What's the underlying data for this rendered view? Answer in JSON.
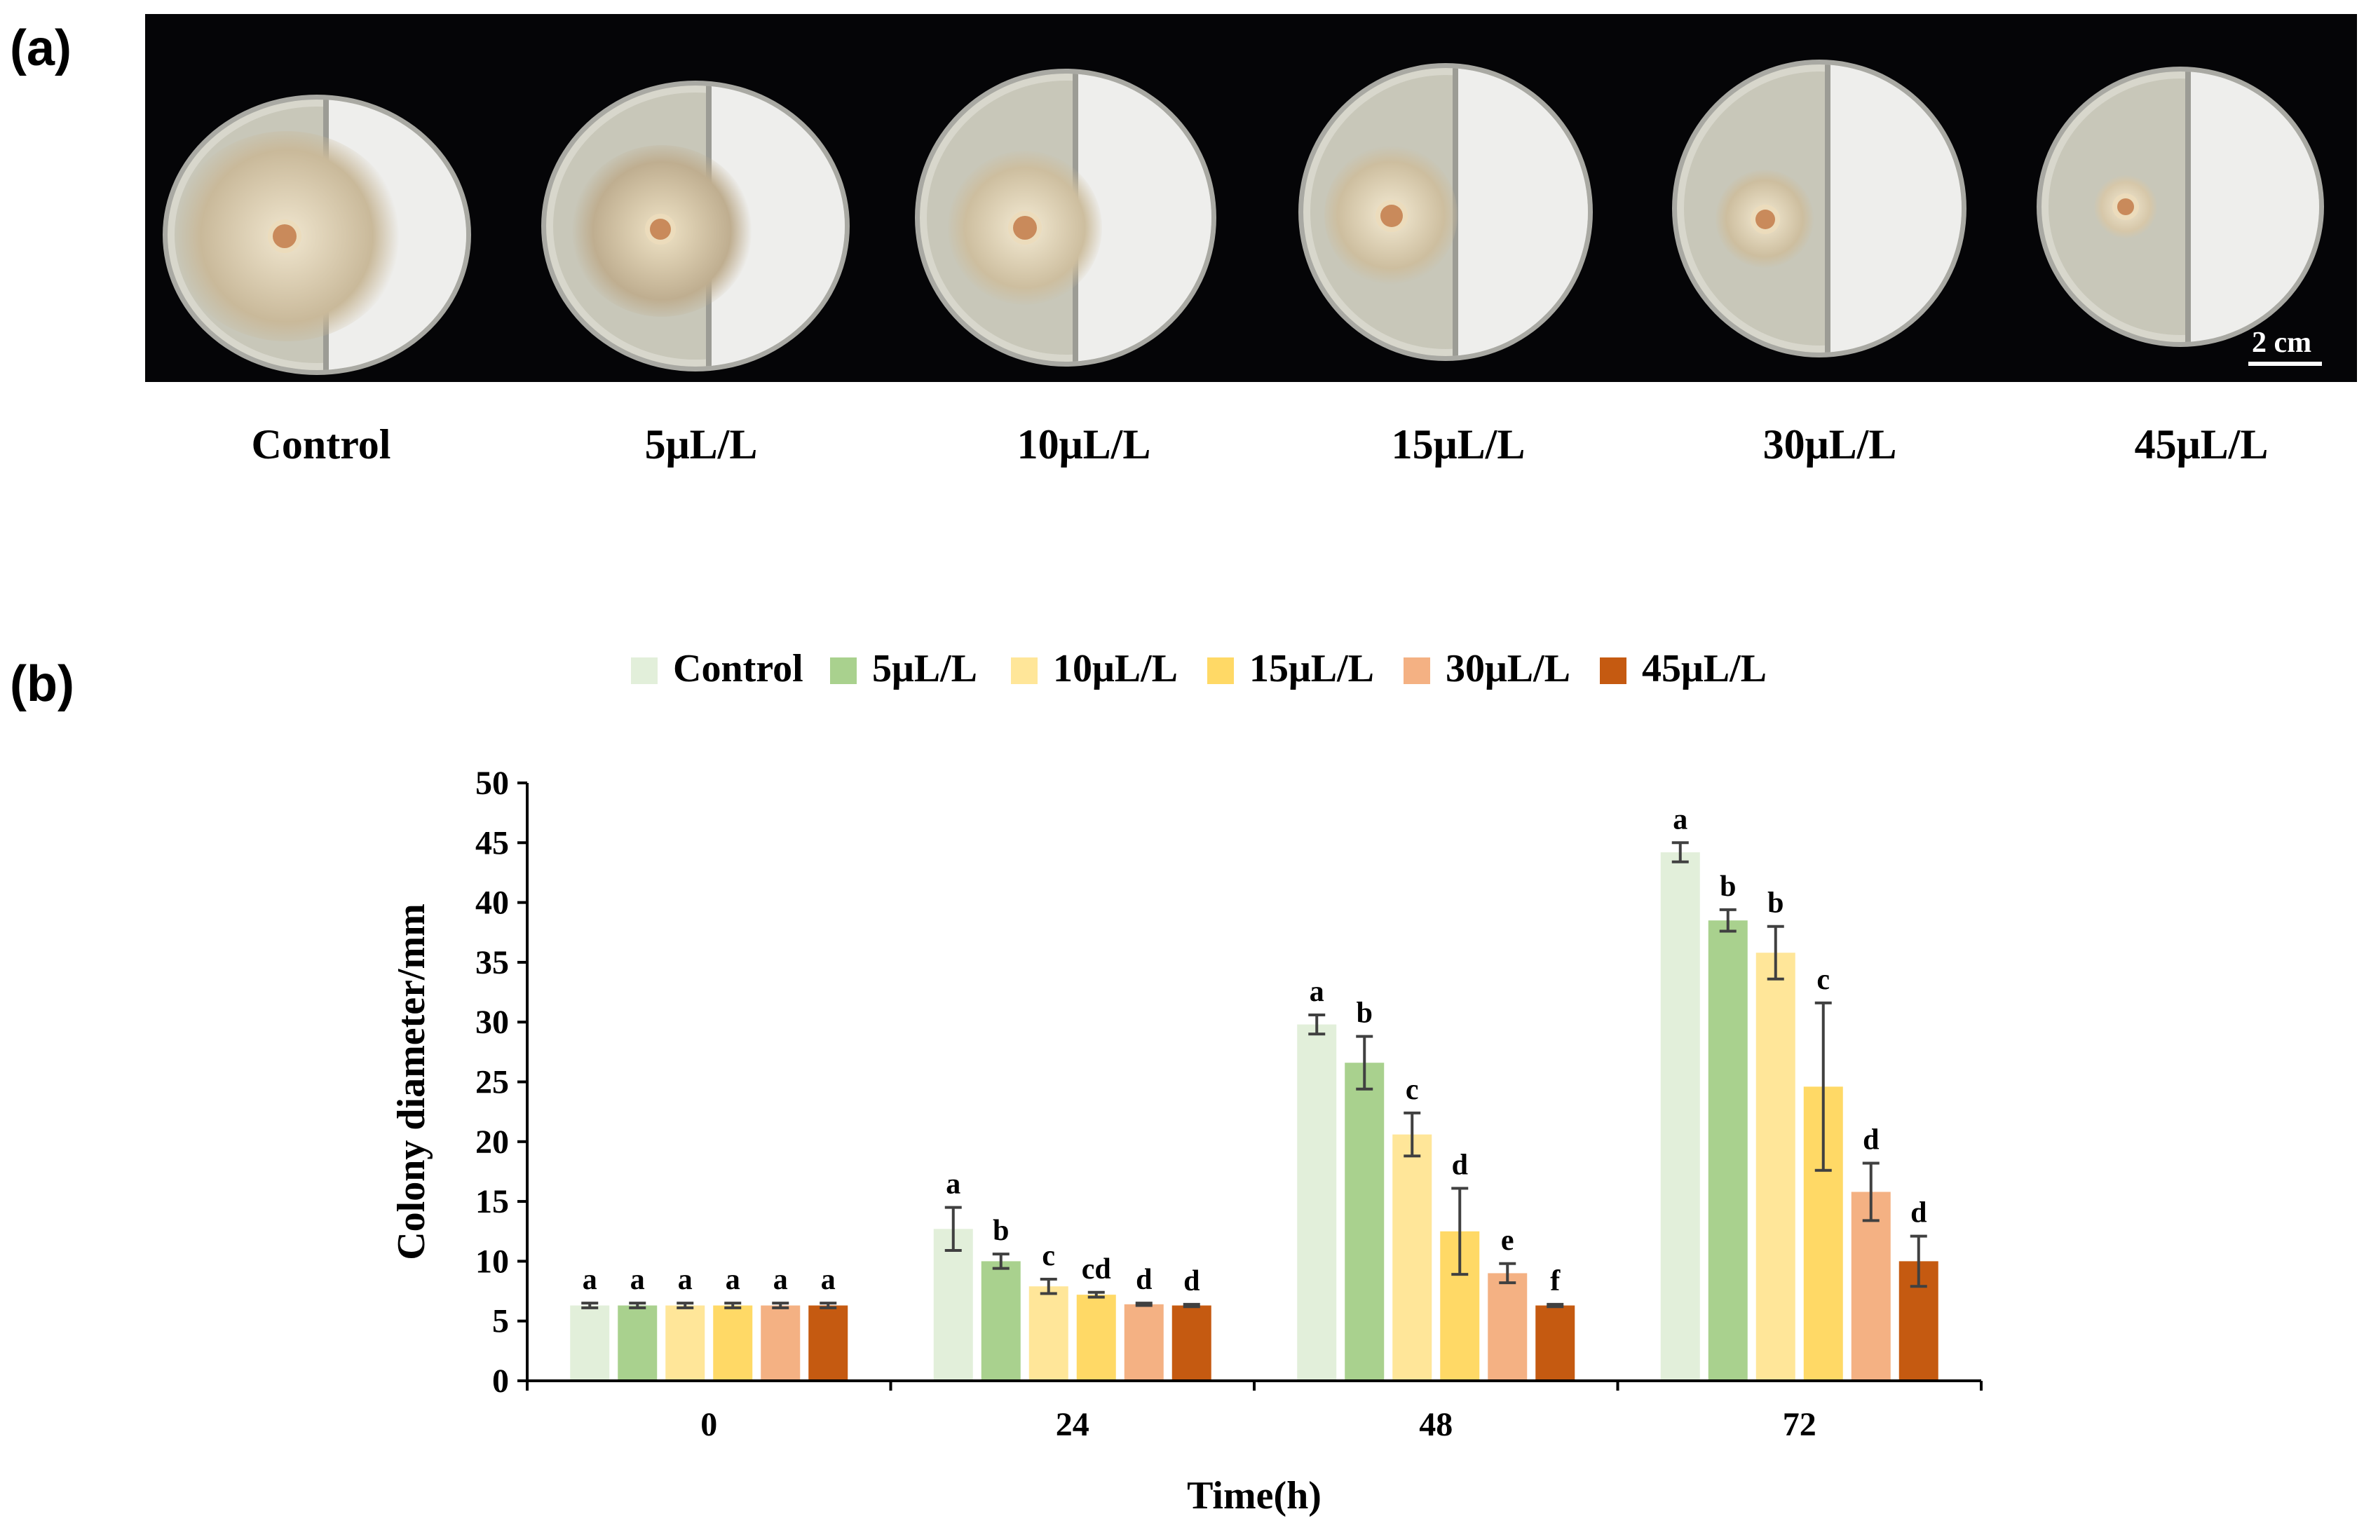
{
  "panel_a_label": "(a)",
  "panel_b_label": "(b)",
  "scale_bar_label": "2 cm",
  "dish_labels": [
    "Control",
    "5μL/L",
    "10μL/L",
    "15μL/L",
    "30μL/L",
    "45μL/L"
  ],
  "colors": {
    "control": "#e2efda",
    "c5": "#a9d18e",
    "c10": "#ffe699",
    "c15": "#ffd966",
    "c30": "#f4b183",
    "c45": "#c55a11",
    "axis": "#000000",
    "error_bar": "#404040"
  },
  "chart_data": {
    "type": "bar",
    "title": "",
    "xlabel": "Time(h)",
    "ylabel": "Colony diameter/mm",
    "ylim": [
      0,
      50
    ],
    "yticks": [
      0,
      5,
      10,
      15,
      20,
      25,
      30,
      35,
      40,
      45,
      50
    ],
    "legend_position": "top-center",
    "categories": [
      "0",
      "24",
      "48",
      "72"
    ],
    "series": [
      {
        "name": "Control",
        "values": [
          6.3,
          12.7,
          29.8,
          44.2
        ],
        "errors": [
          0.2,
          1.8,
          0.8,
          0.8
        ],
        "letters": [
          "a",
          "a",
          "a",
          "a"
        ]
      },
      {
        "name": "5μL/L",
        "values": [
          6.3,
          10.0,
          26.6,
          38.5
        ],
        "errors": [
          0.2,
          0.6,
          2.2,
          0.9
        ],
        "letters": [
          "a",
          "b",
          "b",
          "b"
        ]
      },
      {
        "name": "10μL/L",
        "values": [
          6.3,
          7.9,
          20.6,
          35.8
        ],
        "errors": [
          0.2,
          0.6,
          1.8,
          2.2
        ],
        "letters": [
          "a",
          "c",
          "c",
          "b"
        ]
      },
      {
        "name": "15μL/L",
        "values": [
          6.3,
          7.2,
          12.5,
          24.6
        ],
        "errors": [
          0.2,
          0.2,
          3.6,
          7.0
        ],
        "letters": [
          "a",
          "cd",
          "d",
          "c"
        ]
      },
      {
        "name": "30μL/L",
        "values": [
          6.3,
          6.4,
          9.0,
          15.8
        ],
        "errors": [
          0.2,
          0.1,
          0.8,
          2.4
        ],
        "letters": [
          "a",
          "d",
          "e",
          "d"
        ]
      },
      {
        "name": "45μL/L",
        "values": [
          6.3,
          6.3,
          6.3,
          10.0
        ],
        "errors": [
          0.2,
          0.1,
          0.1,
          2.1
        ],
        "letters": [
          "a",
          "d",
          "f",
          "d"
        ]
      }
    ]
  }
}
